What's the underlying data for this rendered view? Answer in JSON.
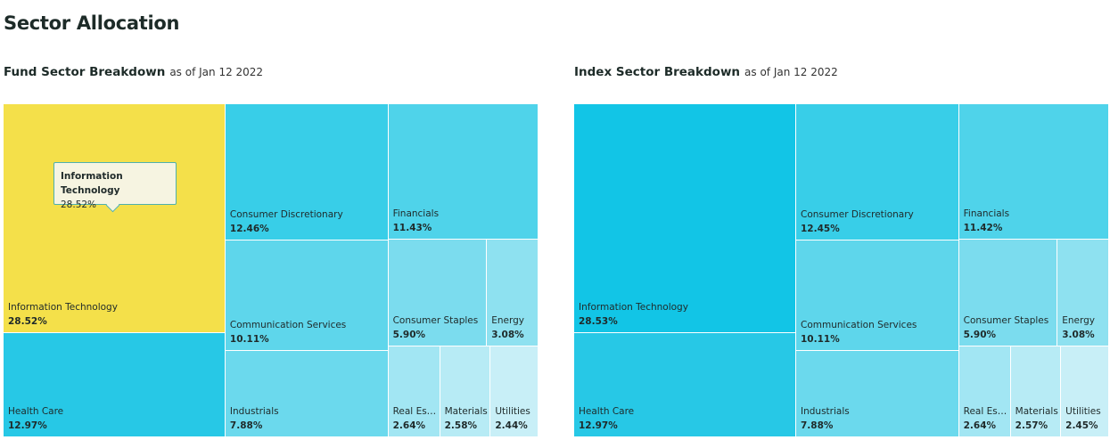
{
  "page_title": "Sector Allocation",
  "colors": {
    "highlight": "#f4e04a",
    "shades": [
      "#12c5e6",
      "#27c8e6",
      "#38cee8",
      "#4fd3ea",
      "#5ed6eb",
      "#6bd9ed",
      "#7bdcee",
      "#8ee1f0",
      "#a2e6f3",
      "#b7ebf5",
      "#c8eff7"
    ]
  },
  "tooltip": {
    "name": "Information Technology",
    "value": "28.52%"
  },
  "chart_data": [
    {
      "type": "treemap",
      "title": "Fund Sector Breakdown",
      "date": "as of Jan 12 2022",
      "highlighted": "Information Technology",
      "sectors": [
        {
          "name": "Information Technology",
          "label": "Information Technology",
          "value": 28.52,
          "display": "28.52%"
        },
        {
          "name": "Health Care",
          "label": "Health Care",
          "value": 12.97,
          "display": "12.97%"
        },
        {
          "name": "Consumer Discretionary",
          "label": "Consumer Discretionary",
          "value": 12.46,
          "display": "12.46%"
        },
        {
          "name": "Communication Services",
          "label": "Communication Services",
          "value": 10.11,
          "display": "10.11%"
        },
        {
          "name": "Industrials",
          "label": "Industrials",
          "value": 7.88,
          "display": "7.88%"
        },
        {
          "name": "Financials",
          "label": "Financials",
          "value": 11.43,
          "display": "11.43%"
        },
        {
          "name": "Consumer Staples",
          "label": "Consumer Staples",
          "value": 5.9,
          "display": "5.90%"
        },
        {
          "name": "Energy",
          "label": "Energy",
          "value": 3.08,
          "display": "3.08%"
        },
        {
          "name": "Real Estate",
          "label": "Real Est…",
          "value": 2.64,
          "display": "2.64%"
        },
        {
          "name": "Materials",
          "label": "Materials",
          "value": 2.58,
          "display": "2.58%"
        },
        {
          "name": "Utilities",
          "label": "Utilities",
          "value": 2.44,
          "display": "2.44%"
        }
      ]
    },
    {
      "type": "treemap",
      "title": "Index Sector Breakdown",
      "date": "as of Jan 12 2022",
      "highlighted": "",
      "sectors": [
        {
          "name": "Information Technology",
          "label": "Information Technology",
          "value": 28.53,
          "display": "28.53%"
        },
        {
          "name": "Health Care",
          "label": "Health Care",
          "value": 12.97,
          "display": "12.97%"
        },
        {
          "name": "Consumer Discretionary",
          "label": "Consumer Discretionary",
          "value": 12.45,
          "display": "12.45%"
        },
        {
          "name": "Communication Services",
          "label": "Communication Services",
          "value": 10.11,
          "display": "10.11%"
        },
        {
          "name": "Industrials",
          "label": "Industrials",
          "value": 7.88,
          "display": "7.88%"
        },
        {
          "name": "Financials",
          "label": "Financials",
          "value": 11.42,
          "display": "11.42%"
        },
        {
          "name": "Consumer Staples",
          "label": "Consumer Staples",
          "value": 5.9,
          "display": "5.90%"
        },
        {
          "name": "Energy",
          "label": "Energy",
          "value": 3.08,
          "display": "3.08%"
        },
        {
          "name": "Real Estate",
          "label": "Real Est…",
          "value": 2.64,
          "display": "2.64%"
        },
        {
          "name": "Materials",
          "label": "Materials",
          "value": 2.57,
          "display": "2.57%"
        },
        {
          "name": "Utilities",
          "label": "Utilities",
          "value": 2.45,
          "display": "2.45%"
        }
      ]
    }
  ]
}
